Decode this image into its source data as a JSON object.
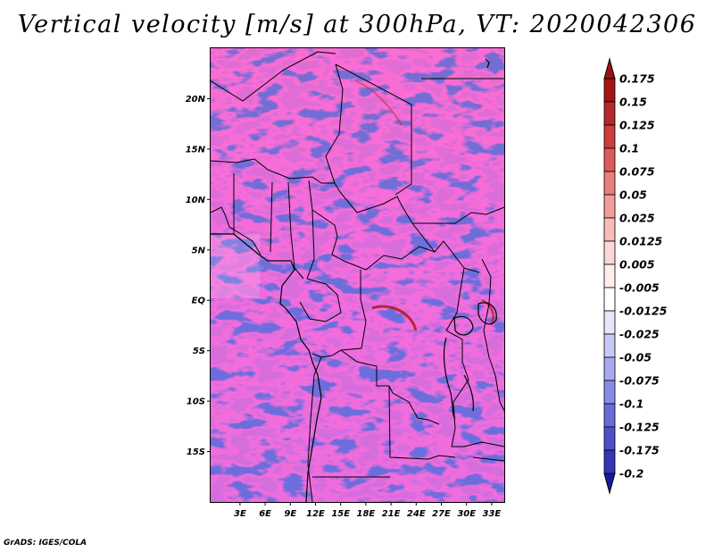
{
  "title": "Vertical velocity [m/s] at 300hPa, VT: 2020042306",
  "credit": "GrADS: IGES/COLA",
  "field": {
    "variable": "Vertical velocity",
    "units": "m/s",
    "level": "300hPa",
    "valid_time": "2020042306"
  },
  "map": {
    "lon_range_deg": [
      -0.5,
      34.5
    ],
    "lat_range_deg": [
      -20,
      25
    ],
    "x_ticks": [
      {
        "value": 3,
        "label": "3E"
      },
      {
        "value": 6,
        "label": "6E"
      },
      {
        "value": 9,
        "label": "9E"
      },
      {
        "value": 12,
        "label": "12E"
      },
      {
        "value": 15,
        "label": "15E"
      },
      {
        "value": 18,
        "label": "18E"
      },
      {
        "value": 21,
        "label": "21E"
      },
      {
        "value": 24,
        "label": "24E"
      },
      {
        "value": 27,
        "label": "27E"
      },
      {
        "value": 30,
        "label": "30E"
      },
      {
        "value": 33,
        "label": "33E"
      }
    ],
    "y_ticks": [
      {
        "value": 20,
        "label": "20N"
      },
      {
        "value": 15,
        "label": "15N"
      },
      {
        "value": 10,
        "label": "10N"
      },
      {
        "value": 5,
        "label": "5N"
      },
      {
        "value": 0,
        "label": "EQ"
      },
      {
        "value": -5,
        "label": "5S"
      },
      {
        "value": -10,
        "label": "10S"
      },
      {
        "value": -15,
        "label": "15S"
      }
    ]
  },
  "colorbar": {
    "levels": [
      {
        "label": "0.175",
        "color": "#a11515"
      },
      {
        "label": "0.15",
        "color": "#b8282a"
      },
      {
        "label": "0.125",
        "color": "#cc3d3d"
      },
      {
        "label": "0.1",
        "color": "#dd5a58"
      },
      {
        "label": "0.075",
        "color": "#e87e7a"
      },
      {
        "label": "0.05",
        "color": "#f19d98"
      },
      {
        "label": "0.025",
        "color": "#f7bcb8"
      },
      {
        "label": "0.0125",
        "color": "#fbd8d5"
      },
      {
        "label": "0.005",
        "color": "#fdeeed"
      },
      {
        "label": "-0.005",
        "color": "#ffffff"
      },
      {
        "label": "-0.0125",
        "color": "#e5e5fb"
      },
      {
        "label": "-0.025",
        "color": "#c8c8f6"
      },
      {
        "label": "-0.05",
        "color": "#a9a9f0"
      },
      {
        "label": "-0.075",
        "color": "#8989e6"
      },
      {
        "label": "-0.1",
        "color": "#6a6ad9"
      },
      {
        "label": "-0.125",
        "color": "#4f4fca"
      },
      {
        "label": "-0.175",
        "color": "#3535b8"
      },
      {
        "label": "-0.2",
        "color": "#1e1ea3"
      }
    ],
    "top_cap_color": "#a01010",
    "bottom_cap_color": "#1a1a9e"
  }
}
